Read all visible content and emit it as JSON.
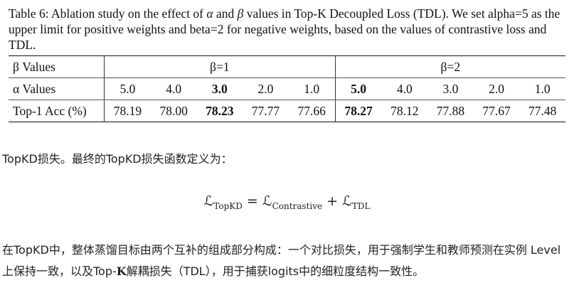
{
  "caption": {
    "parts": [
      "Table 6:  Ablation study on the effect of ",
      "α",
      " and ",
      "β",
      " values in Top-K Decoupled Loss (TDL). We set alpha=5 as the upper limit for positive weights and beta=2 for negative weights, based on the values of contrastive loss and TDL."
    ]
  },
  "table": {
    "header": [
      "β Values",
      "β=1",
      "β=2"
    ],
    "rows": [
      [
        "α Values",
        "5.0",
        "4.0",
        "3.0",
        "2.0",
        "1.0",
        "5.0",
        "4.0",
        "3.0",
        "2.0",
        "1.0"
      ],
      [
        "Top-1 Acc (%)",
        "78.19",
        "78.00",
        "78.23",
        "77.77",
        "77.66",
        "78.27",
        "78.12",
        "77.88",
        "77.67",
        "77.48"
      ]
    ]
  },
  "paragraph1": "TopKD损失。最终的TopKD损失函数定义为：",
  "formula": {
    "symbol": "ℒ",
    "lhs_sub": "TopKD",
    "equals": "=",
    "term1_sub": "Contrastive",
    "plus": "+",
    "term2_sub": "TDL"
  },
  "paragraph2": {
    "parts": [
      "在TopKD中，整体蒸馏目标由两个互补的组成部分构成：一个对比损失，用于强制学生和教师预测在实例 Level 上保持一致，以及Top-",
      "K",
      "解耦损失（TDL），用于捕获logits中的细粒度结构一致性。"
    ]
  }
}
